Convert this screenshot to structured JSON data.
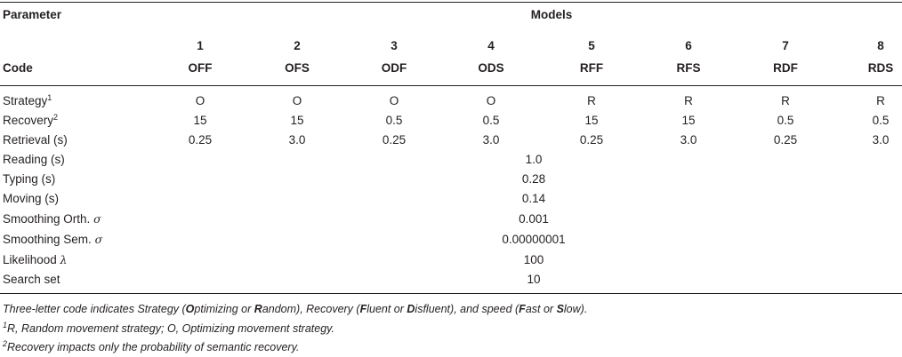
{
  "header": {
    "parameter": "Parameter",
    "models": "Models",
    "code": "Code"
  },
  "models": [
    {
      "num": "1",
      "code": "OFF"
    },
    {
      "num": "2",
      "code": "OFS"
    },
    {
      "num": "3",
      "code": "ODF"
    },
    {
      "num": "4",
      "code": "ODS"
    },
    {
      "num": "5",
      "code": "RFF"
    },
    {
      "num": "6",
      "code": "RFS"
    },
    {
      "num": "7",
      "code": "RDF"
    },
    {
      "num": "8",
      "code": "RDS"
    }
  ],
  "rows_per_model": [
    {
      "label": "Strategy",
      "sup": "1",
      "values": [
        "O",
        "O",
        "O",
        "O",
        "R",
        "R",
        "R",
        "R"
      ]
    },
    {
      "label": "Recovery",
      "sup": "2",
      "values": [
        "15",
        "15",
        "0.5",
        "0.5",
        "15",
        "15",
        "0.5",
        "0.5"
      ]
    },
    {
      "label": "Retrieval (s)",
      "sup": "",
      "values": [
        "0.25",
        "3.0",
        "0.25",
        "3.0",
        "0.25",
        "3.0",
        "0.25",
        "3.0"
      ]
    }
  ],
  "rows_shared": [
    {
      "label": "Reading (s)",
      "symbol": "",
      "value": "1.0"
    },
    {
      "label": "Typing (s)",
      "symbol": "",
      "value": "0.28"
    },
    {
      "label": "Moving (s)",
      "symbol": "",
      "value": "0.14"
    },
    {
      "label": "Smoothing Orth. ",
      "symbol": "σ",
      "value": "0.001"
    },
    {
      "label": "Smoothing Sem. ",
      "symbol": "σ",
      "value": "0.00000001"
    },
    {
      "label": "Likelihood ",
      "symbol": "λ",
      "value": "100"
    },
    {
      "label": "Search set",
      "symbol": "",
      "value": "10"
    }
  ],
  "footnotes": {
    "note_main": {
      "p1": "Three-letter code indicates Strategy (",
      "b1": "O",
      "p2": "ptimizing or ",
      "b2": "R",
      "p3": "andom), Recovery (",
      "b3": "F",
      "p4": "luent or ",
      "b4": "D",
      "p5": "isfluent), and speed (",
      "b5": "F",
      "p6": "ast or ",
      "b6": "S",
      "p7": "low)."
    },
    "note1_mark": "1",
    "note1_text": "R, Random movement strategy; O, Optimizing movement strategy.",
    "note2_mark": "2",
    "note2_text": "Recovery impacts only the probability of semantic recovery."
  }
}
